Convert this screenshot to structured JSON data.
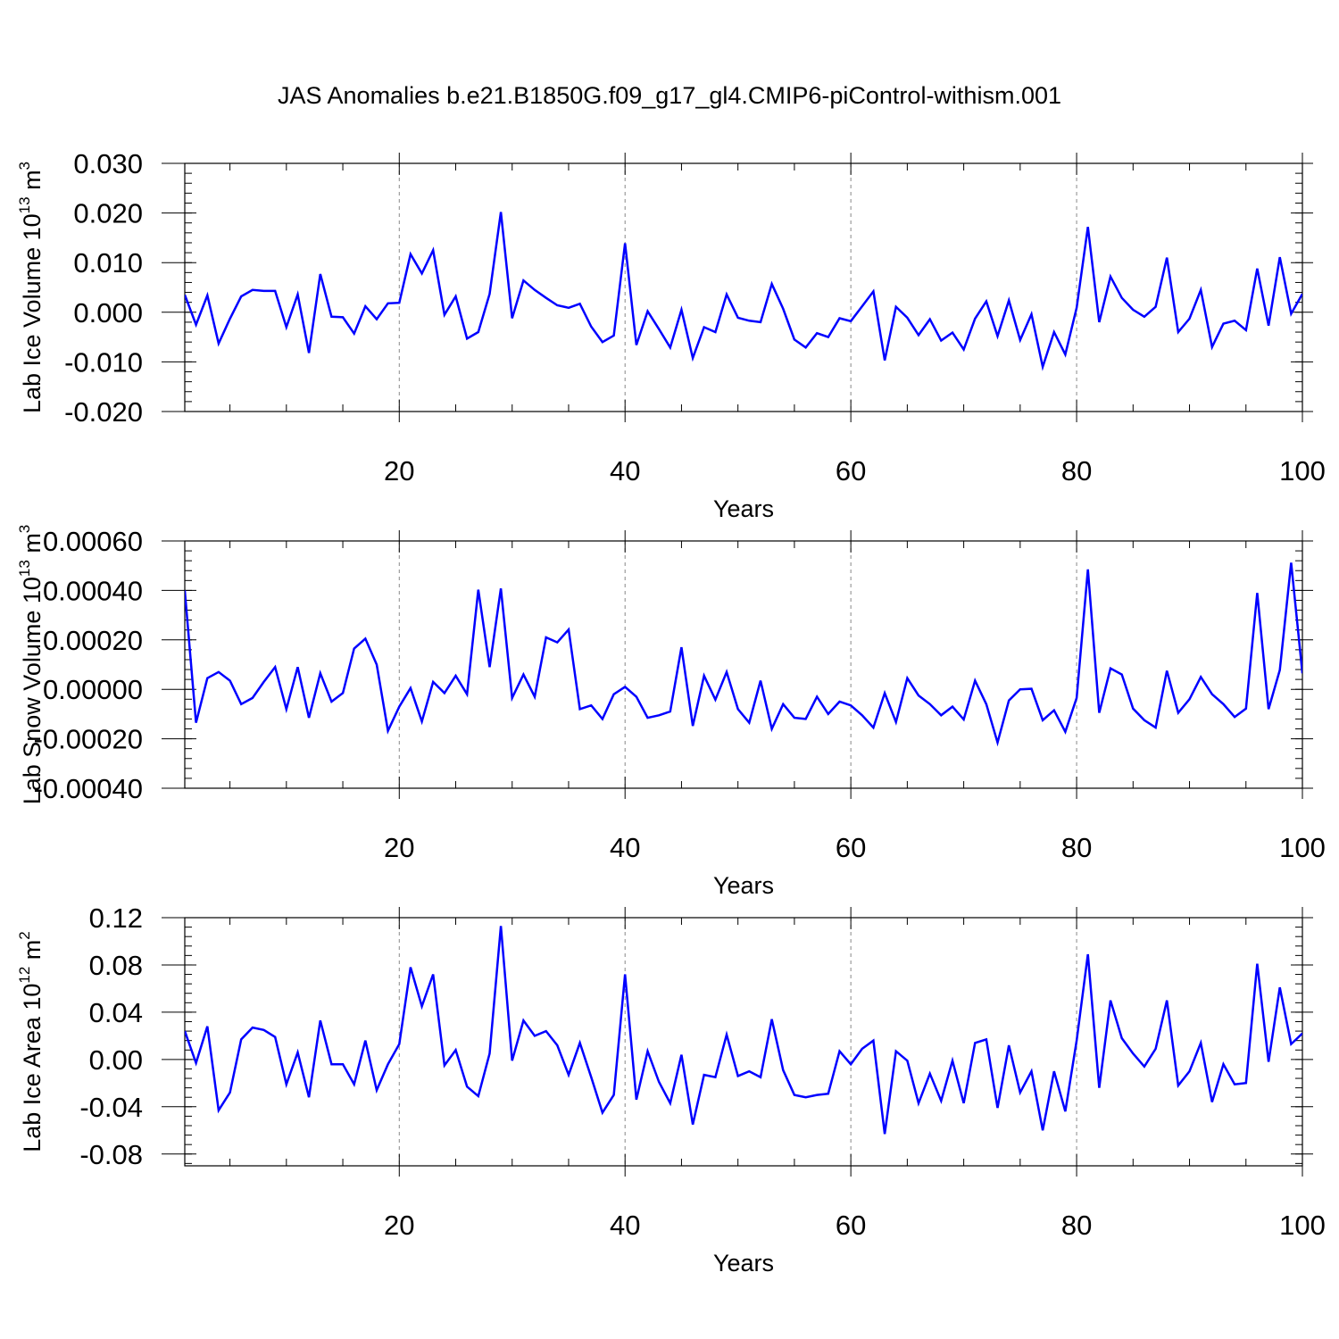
{
  "title": "JAS Anomalies b.e21.B1850G.f09_g17_gl4.CMIP6-piControl-withism.001",
  "chart_data": [
    {
      "type": "line",
      "title": "JAS Anomalies b.e21.B1850G.f09_g17_gl4.CMIP6-piControl-withism.001",
      "xlabel": "Years",
      "ylabel": "Lab Ice Volume 10",
      "ylabel_sup": "13",
      "ylabel_unit": " m",
      "ylabel_unit_sup": "3",
      "xlim": [
        1,
        100
      ],
      "ylim": [
        -0.02,
        0.03
      ],
      "xticks": [
        20,
        40,
        60,
        80,
        100
      ],
      "xtick_labels": [
        "20",
        "40",
        "60",
        "80",
        "100"
      ],
      "yticks": [
        -0.02,
        -0.01,
        0.0,
        0.01,
        0.02,
        0.03
      ],
      "ytick_labels": [
        "-0.020",
        "-0.010",
        "0.000",
        "0.010",
        "0.020",
        "0.030"
      ],
      "grid": "vertical dashed at major x ticks",
      "color": "#0000ff",
      "series": [
        {
          "name": "Lab Ice Volume",
          "x": [
            1,
            2,
            3,
            4,
            5,
            6,
            7,
            8,
            9,
            10,
            11,
            12,
            13,
            14,
            15,
            16,
            17,
            18,
            19,
            20,
            21,
            22,
            23,
            24,
            25,
            26,
            27,
            28,
            29,
            30,
            31,
            32,
            33,
            34,
            35,
            36,
            37,
            38,
            39,
            40,
            41,
            42,
            43,
            44,
            45,
            46,
            47,
            48,
            49,
            50,
            51,
            52,
            53,
            54,
            55,
            56,
            57,
            58,
            59,
            60,
            61,
            62,
            63,
            64,
            65,
            66,
            67,
            68,
            69,
            70,
            71,
            72,
            73,
            74,
            75,
            76,
            77,
            78,
            79,
            80,
            81,
            82,
            83,
            84,
            85,
            86,
            87,
            88,
            89,
            90,
            91,
            92,
            93,
            94,
            95,
            96,
            97,
            98,
            99,
            100
          ],
          "values": [
            0.0035,
            -0.0025,
            0.0034,
            -0.0063,
            -0.0013,
            0.0032,
            0.0045,
            0.0043,
            0.0043,
            -0.003,
            0.0036,
            -0.0082,
            0.0077,
            -0.0009,
            -0.001,
            -0.0043,
            0.0012,
            -0.0014,
            0.0018,
            0.0019,
            0.0117,
            0.0078,
            0.0125,
            -0.0005,
            0.0032,
            -0.0053,
            -0.004,
            0.0037,
            0.0202,
            -0.0012,
            0.0064,
            0.0045,
            0.0029,
            0.0014,
            0.0009,
            0.0017,
            -0.0029,
            -0.006,
            -0.0047,
            0.0139,
            -0.0066,
            0.0002,
            -0.0034,
            -0.0071,
            0.0005,
            -0.0092,
            -0.003,
            -0.004,
            0.0036,
            -0.0011,
            -0.0017,
            -0.002,
            0.0057,
            0.0007,
            -0.0055,
            -0.0071,
            -0.0042,
            -0.005,
            -0.0012,
            -0.0018,
            0.0012,
            0.0042,
            -0.0097,
            0.0011,
            -0.0011,
            -0.0046,
            -0.0014,
            -0.0057,
            -0.0041,
            -0.0075,
            -0.0013,
            0.0022,
            -0.0048,
            0.0024,
            -0.0056,
            -0.0004,
            -0.011,
            -0.004,
            -0.0085,
            0.0009,
            0.0172,
            -0.002,
            0.0072,
            0.0029,
            0.0005,
            -0.0009,
            0.0011,
            0.011,
            -0.004,
            -0.0013,
            0.0045,
            -0.007,
            -0.0023,
            -0.0017,
            -0.0036,
            0.0088,
            -0.0027,
            0.0111,
            -0.0003,
            0.0037
          ]
        }
      ]
    },
    {
      "type": "line",
      "xlabel": "Years",
      "ylabel": "Lab Snow Volume 10",
      "ylabel_sup": "13",
      "ylabel_unit": " m",
      "ylabel_unit_sup": "3",
      "xlim": [
        1,
        100
      ],
      "ylim": [
        -0.0004,
        0.0006
      ],
      "xticks": [
        20,
        40,
        60,
        80,
        100
      ],
      "xtick_labels": [
        "20",
        "40",
        "60",
        "80",
        "100"
      ],
      "yticks": [
        -0.0004,
        -0.0002,
        0.0,
        0.0002,
        0.0004,
        0.0006
      ],
      "ytick_labels": [
        "-0.00040",
        "-0.00020",
        "0.00000",
        "0.00020",
        "0.00040",
        "0.00060"
      ],
      "grid": "vertical dashed at major x ticks",
      "color": "#0000ff",
      "series": [
        {
          "name": "Lab Snow Volume",
          "x": [
            1,
            2,
            3,
            4,
            5,
            6,
            7,
            8,
            9,
            10,
            11,
            12,
            13,
            14,
            15,
            16,
            17,
            18,
            19,
            20,
            21,
            22,
            23,
            24,
            25,
            26,
            27,
            28,
            29,
            30,
            31,
            32,
            33,
            34,
            35,
            36,
            37,
            38,
            39,
            40,
            41,
            42,
            43,
            44,
            45,
            46,
            47,
            48,
            49,
            50,
            51,
            52,
            53,
            54,
            55,
            56,
            57,
            58,
            59,
            60,
            61,
            62,
            63,
            64,
            65,
            66,
            67,
            68,
            69,
            70,
            71,
            72,
            73,
            74,
            75,
            76,
            77,
            78,
            79,
            80,
            81,
            82,
            83,
            84,
            85,
            86,
            87,
            88,
            89,
            90,
            91,
            92,
            93,
            94,
            95,
            96,
            97,
            98,
            99,
            100
          ],
          "values": [
            0.0004,
            -0.000135,
            4.5e-05,
            7e-05,
            3.5e-05,
            -6e-05,
            -3.5e-05,
            3e-05,
            9e-05,
            -8e-05,
            9e-05,
            -0.000115,
            6.5e-05,
            -5e-05,
            -1.5e-05,
            0.000165,
            0.000205,
            0.0001,
            -0.000168,
            -7e-05,
            5e-06,
            -0.00013,
            3e-05,
            -1.5e-05,
            5.5e-05,
            -2e-05,
            0.000403,
            9e-05,
            0.000408,
            -3.5e-05,
            6e-05,
            -3e-05,
            0.00021,
            0.00019,
            0.000242,
            -8e-05,
            -6.5e-05,
            -0.00012,
            -2e-05,
            1e-05,
            -3e-05,
            -0.000115,
            -0.000105,
            -9e-05,
            0.00017,
            -0.000148,
            5.5e-05,
            -4.2e-05,
            7e-05,
            -8e-05,
            -0.000135,
            3.5e-05,
            -0.00016,
            -6e-05,
            -0.000115,
            -0.00012,
            -3e-05,
            -0.0001,
            -5e-05,
            -6.5e-05,
            -0.000105,
            -0.000155,
            -1.5e-05,
            -0.000132,
            4.5e-05,
            -2.5e-05,
            -6e-05,
            -0.000105,
            -7e-05,
            -0.000122,
            3.5e-05,
            -6e-05,
            -0.000215,
            -4.5e-05,
            0.0,
            2e-06,
            -0.000125,
            -8.5e-05,
            -0.000172,
            -3.5e-05,
            0.000485,
            -9.5e-05,
            8.5e-05,
            6e-05,
            -7.8e-05,
            -0.000125,
            -0.000155,
            7.5e-05,
            -9.5e-05,
            -4e-05,
            5e-05,
            -2e-05,
            -6e-05,
            -0.000112,
            -7.8e-05,
            0.00039,
            -8e-05,
            7.8e-05,
            0.000512,
            6.5e-05
          ]
        }
      ]
    },
    {
      "type": "line",
      "xlabel": "Years",
      "ylabel": "Lab Ice Area 10",
      "ylabel_sup": "12",
      "ylabel_unit": " m",
      "ylabel_unit_sup": "2",
      "xlim": [
        1,
        100
      ],
      "ylim": [
        -0.09,
        0.12
      ],
      "xticks": [
        20,
        40,
        60,
        80,
        100
      ],
      "xtick_labels": [
        "20",
        "40",
        "60",
        "80",
        "100"
      ],
      "yticks": [
        -0.08,
        -0.04,
        0.0,
        0.04,
        0.08,
        0.12
      ],
      "ytick_labels": [
        "-0.08",
        "-0.04",
        "0.00",
        "0.04",
        "0.08",
        "0.12"
      ],
      "grid": "vertical dashed at major x ticks",
      "color": "#0000ff",
      "series": [
        {
          "name": "Lab Ice Area",
          "x": [
            1,
            2,
            3,
            4,
            5,
            6,
            7,
            8,
            9,
            10,
            11,
            12,
            13,
            14,
            15,
            16,
            17,
            18,
            19,
            20,
            21,
            22,
            23,
            24,
            25,
            26,
            27,
            28,
            29,
            30,
            31,
            32,
            33,
            34,
            35,
            36,
            37,
            38,
            39,
            40,
            41,
            42,
            43,
            44,
            45,
            46,
            47,
            48,
            49,
            50,
            51,
            52,
            53,
            54,
            55,
            56,
            57,
            58,
            59,
            60,
            61,
            62,
            63,
            64,
            65,
            66,
            67,
            68,
            69,
            70,
            71,
            72,
            73,
            74,
            75,
            76,
            77,
            78,
            79,
            80,
            81,
            82,
            83,
            84,
            85,
            86,
            87,
            88,
            89,
            90,
            91,
            92,
            93,
            94,
            95,
            96,
            97,
            98,
            99,
            100
          ],
          "values": [
            0.024,
            -0.003,
            0.028,
            -0.043,
            -0.028,
            0.017,
            0.027,
            0.025,
            0.019,
            -0.021,
            0.006,
            -0.032,
            0.033,
            -0.004,
            -0.004,
            -0.021,
            0.016,
            -0.026,
            -0.004,
            0.013,
            0.078,
            0.045,
            0.072,
            -0.005,
            0.008,
            -0.023,
            -0.031,
            0.005,
            0.113,
            -0.001,
            0.033,
            0.02,
            0.024,
            0.012,
            -0.013,
            0.014,
            -0.015,
            -0.045,
            -0.03,
            0.072,
            -0.034,
            0.007,
            -0.019,
            -0.037,
            0.004,
            -0.055,
            -0.013,
            -0.015,
            0.021,
            -0.014,
            -0.01,
            -0.015,
            0.034,
            -0.009,
            -0.03,
            -0.032,
            -0.03,
            -0.029,
            0.007,
            -0.004,
            0.009,
            0.016,
            -0.063,
            0.007,
            -0.001,
            -0.037,
            -0.012,
            -0.035,
            -0.001,
            -0.037,
            0.014,
            0.017,
            -0.041,
            0.012,
            -0.028,
            -0.01,
            -0.06,
            -0.01,
            -0.044,
            0.016,
            0.089,
            -0.024,
            0.05,
            0.018,
            0.005,
            -0.006,
            0.009,
            0.05,
            -0.022,
            -0.01,
            0.014,
            -0.036,
            -0.004,
            -0.021,
            -0.02,
            0.081,
            -0.002,
            0.061,
            0.013,
            0.022
          ]
        }
      ]
    }
  ]
}
